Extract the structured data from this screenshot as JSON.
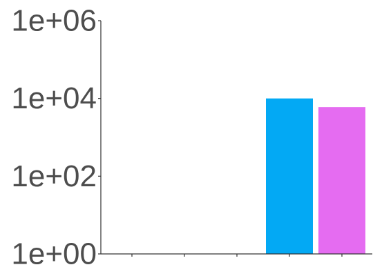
{
  "chart_data": {
    "type": "bar",
    "x_categories": [
      "",
      "",
      "",
      "",
      ""
    ],
    "bars": [
      {
        "category_index": 3,
        "value": 10000,
        "color": "#03A9F4"
      },
      {
        "category_index": 4,
        "value": 6000,
        "color": "#E56CF1"
      }
    ],
    "y_scale": "log10",
    "ylim": [
      1,
      1000000
    ],
    "y_ticks": [
      {
        "value": 1,
        "label": "1e+00"
      },
      {
        "value": 100,
        "label": "1e+02"
      },
      {
        "value": 10000,
        "label": "1e+04"
      },
      {
        "value": 1000000,
        "label": "1e+06"
      }
    ],
    "title": "",
    "xlabel": "",
    "ylabel": "",
    "grid": false,
    "legend": "none"
  }
}
